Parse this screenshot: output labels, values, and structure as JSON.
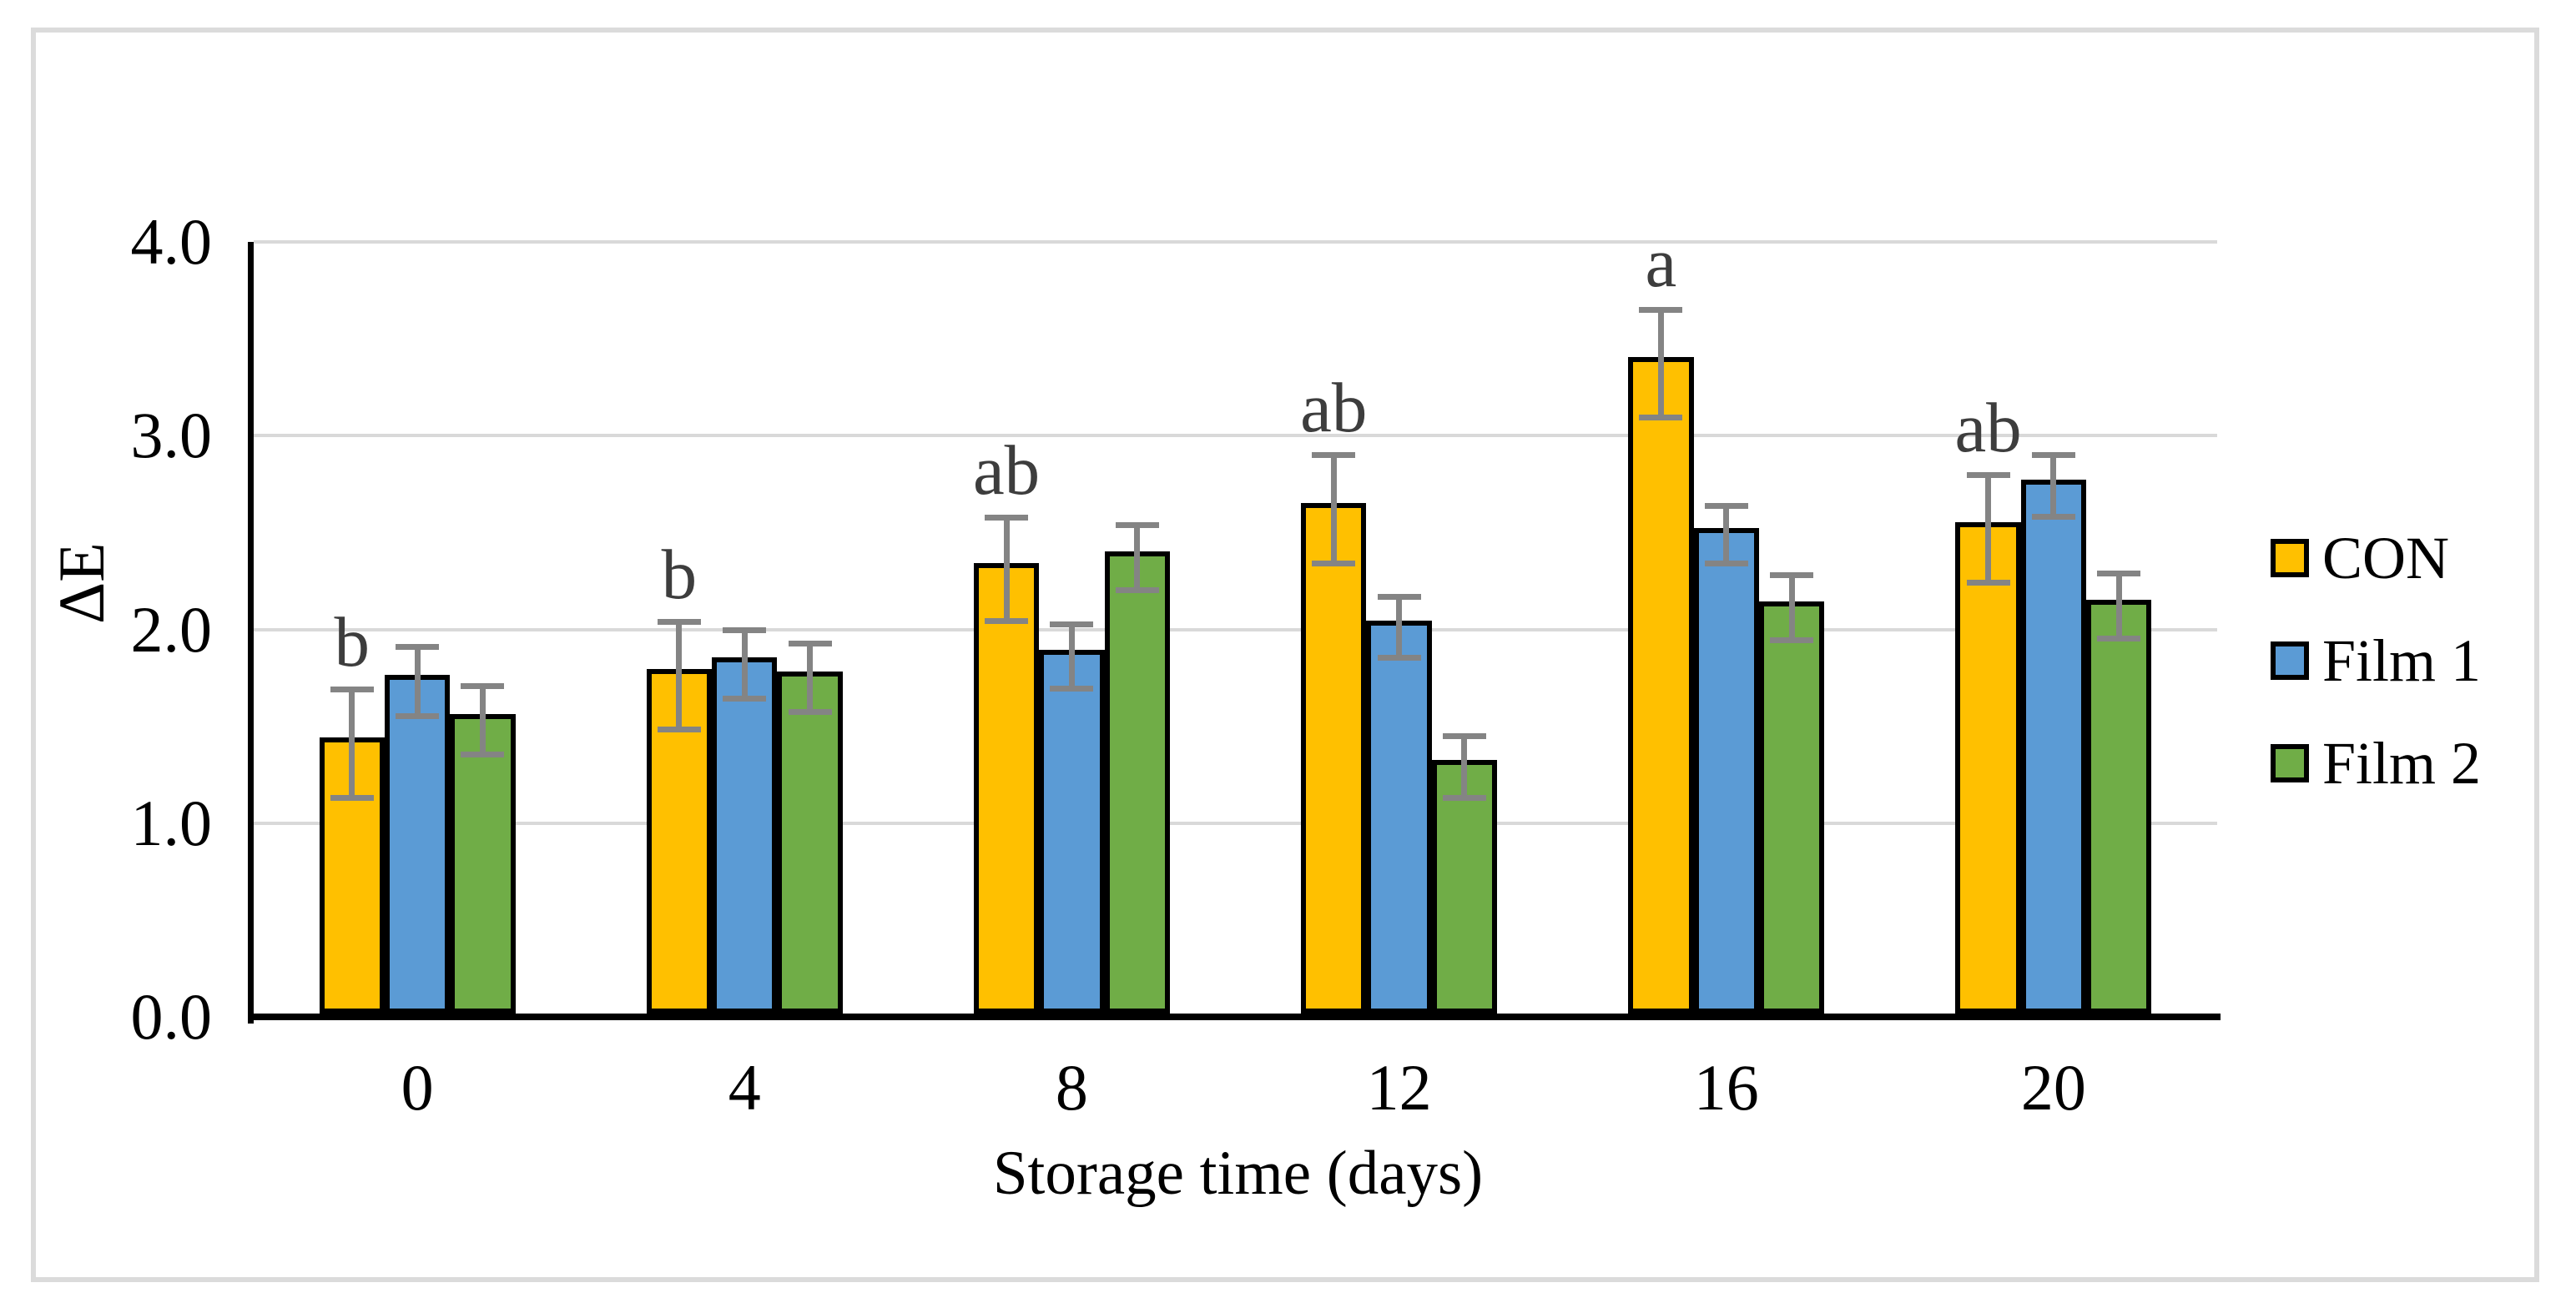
{
  "figure": {
    "background": "#FFFFFF",
    "border_color": "#DBDBDB"
  },
  "chart_data": {
    "type": "bar",
    "title": "",
    "xlabel": "Storage time (days)",
    "ylabel": "ΔE",
    "categories": [
      "0",
      "4",
      "8",
      "12",
      "16",
      "20"
    ],
    "yticks": [
      "0.0",
      "1.0",
      "2.0",
      "3.0",
      "4.0"
    ],
    "ylim": [
      0,
      4.0
    ],
    "grid": true,
    "legend_position": "right",
    "series": [
      {
        "name": "CON",
        "color": "#FFC000",
        "values": [
          1.41,
          1.76,
          2.31,
          2.62,
          3.37,
          2.52
        ],
        "errors": [
          0.28,
          0.28,
          0.27,
          0.28,
          0.28,
          0.28
        ]
      },
      {
        "name": "Film 1",
        "color": "#5B9BD5",
        "values": [
          1.73,
          1.82,
          1.86,
          2.01,
          2.49,
          2.74
        ],
        "errors": [
          0.18,
          0.18,
          0.17,
          0.16,
          0.15,
          0.16
        ]
      },
      {
        "name": "Film 2",
        "color": "#70AD47",
        "values": [
          1.53,
          1.75,
          2.37,
          1.29,
          2.11,
          2.12
        ],
        "errors": [
          0.18,
          0.18,
          0.17,
          0.16,
          0.17,
          0.17
        ]
      }
    ],
    "significance_letters": [
      "b",
      "b",
      "ab",
      "ab",
      "a",
      "ab"
    ],
    "error_bar_color": "#848484",
    "gridline_color": "#D9D9D9",
    "annotation_color": "#3D3D3D"
  }
}
